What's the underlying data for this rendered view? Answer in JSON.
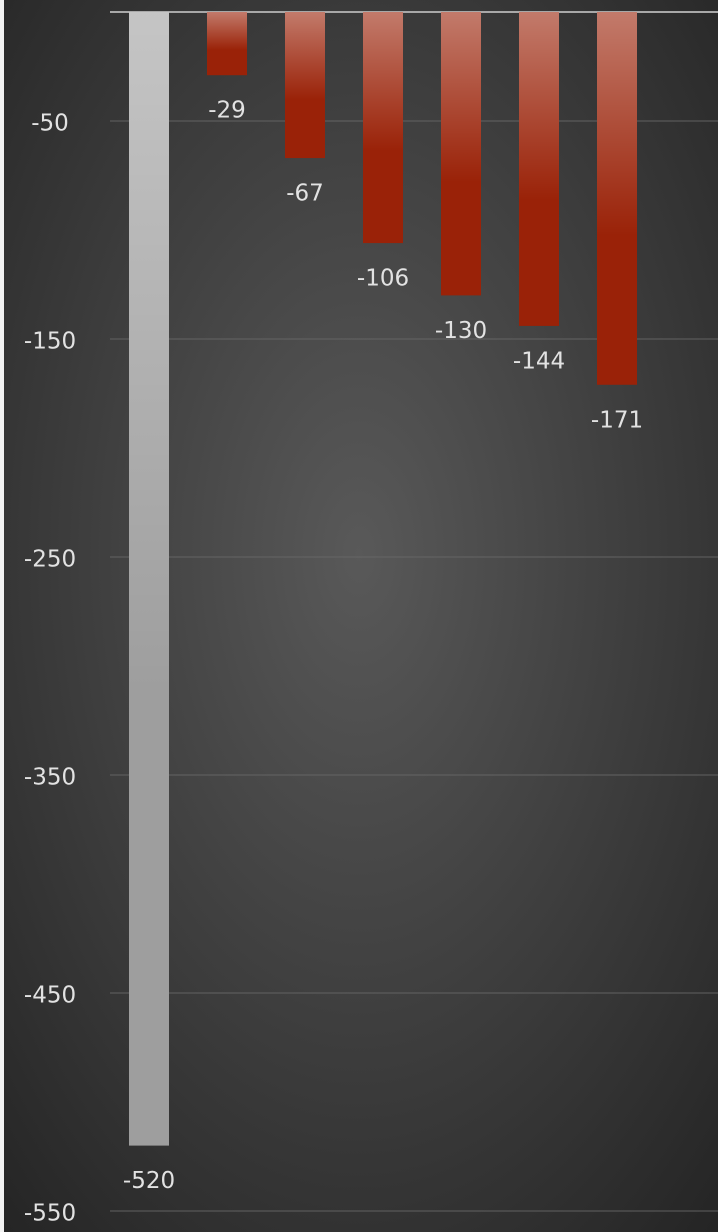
{
  "chart_data": {
    "type": "bar",
    "categories": [
      null,
      null,
      null,
      null,
      null,
      null,
      null
    ],
    "values": [
      -520,
      -29,
      -67,
      -106,
      -130,
      -144,
      -171
    ],
    "colors": [
      "#9e9e9e",
      "#9a2208",
      "#9a2208",
      "#9a2208",
      "#9a2208",
      "#9a2208",
      "#9a2208"
    ],
    "ylim": [
      -550,
      0
    ],
    "yticks": [
      -50,
      -150,
      -250,
      -350,
      -450,
      -550
    ],
    "grid": true
  }
}
